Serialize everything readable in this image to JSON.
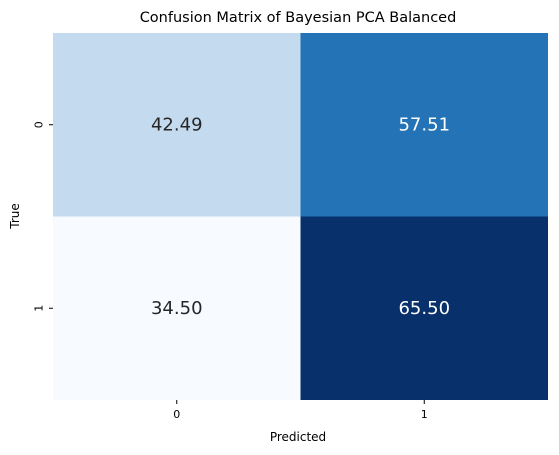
{
  "chart_data": {
    "type": "heatmap",
    "title": "Confusion Matrix of Bayesian PCA Balanced",
    "xlabel": "Predicted",
    "ylabel": "True",
    "x_categories": [
      "0",
      "1"
    ],
    "y_categories": [
      "0",
      "1"
    ],
    "values": [
      [
        42.49,
        57.51
      ],
      [
        34.5,
        65.5
      ]
    ],
    "cell_labels": [
      [
        "42.49",
        "57.51"
      ],
      [
        "34.50",
        "65.50"
      ]
    ],
    "colormap": "Blues",
    "color_range": [
      34.5,
      65.5
    ],
    "colorbar": false,
    "grid": false,
    "colors": {
      "low": "#f7fbff",
      "high": "#08306b",
      "text_dark": "#262626",
      "text_light": "#ffffff"
    }
  }
}
